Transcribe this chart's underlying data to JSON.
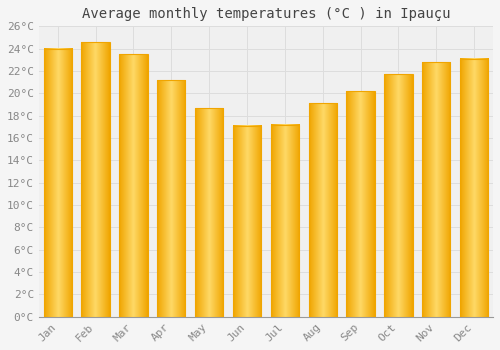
{
  "title": "Average monthly temperatures (°C ) in Ipauçu",
  "months": [
    "Jan",
    "Feb",
    "Mar",
    "Apr",
    "May",
    "Jun",
    "Jul",
    "Aug",
    "Sep",
    "Oct",
    "Nov",
    "Dec"
  ],
  "values": [
    24.0,
    24.6,
    23.5,
    21.2,
    18.7,
    17.1,
    17.2,
    19.1,
    20.2,
    21.7,
    22.8,
    23.1
  ],
  "bar_color_center": "#FFD966",
  "bar_color_edge": "#F0A500",
  "ylim": [
    0,
    26
  ],
  "ytick_step": 2,
  "background_color": "#f5f5f5",
  "plot_bg_color": "#f0f0f0",
  "grid_color": "#dddddd",
  "title_fontsize": 10,
  "tick_fontsize": 8,
  "tick_color": "#888888",
  "title_color": "#444444"
}
